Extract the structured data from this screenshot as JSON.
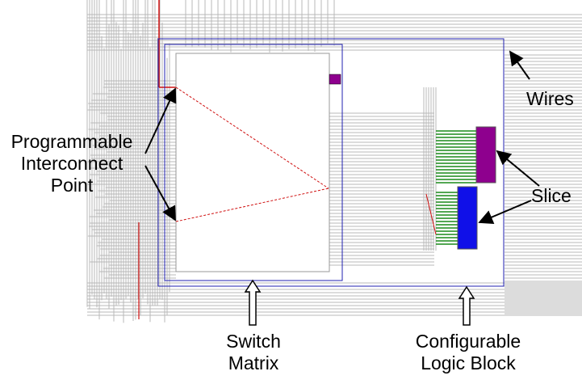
{
  "labels": {
    "programmable_interconnect_point": [
      "Programmable",
      "Interconnect",
      "Point"
    ],
    "wires": "Wires",
    "slice": "Slice",
    "switch_matrix": [
      "Switch",
      "Matrix"
    ],
    "configurable_logic_block": [
      "Configurable",
      "Logic Block"
    ]
  },
  "colors": {
    "wire_gray": "#b8b8b8",
    "route_red": "#d01010",
    "boundary_blue": "#2020b0",
    "slice_purple": "#8e008e",
    "slice_blue": "#1010e8",
    "pin_green": "#1a8a1a",
    "arrow_black": "#000000"
  },
  "icons": [
    "arrow-up-outline-icon",
    "callout-arrow-icon"
  ]
}
